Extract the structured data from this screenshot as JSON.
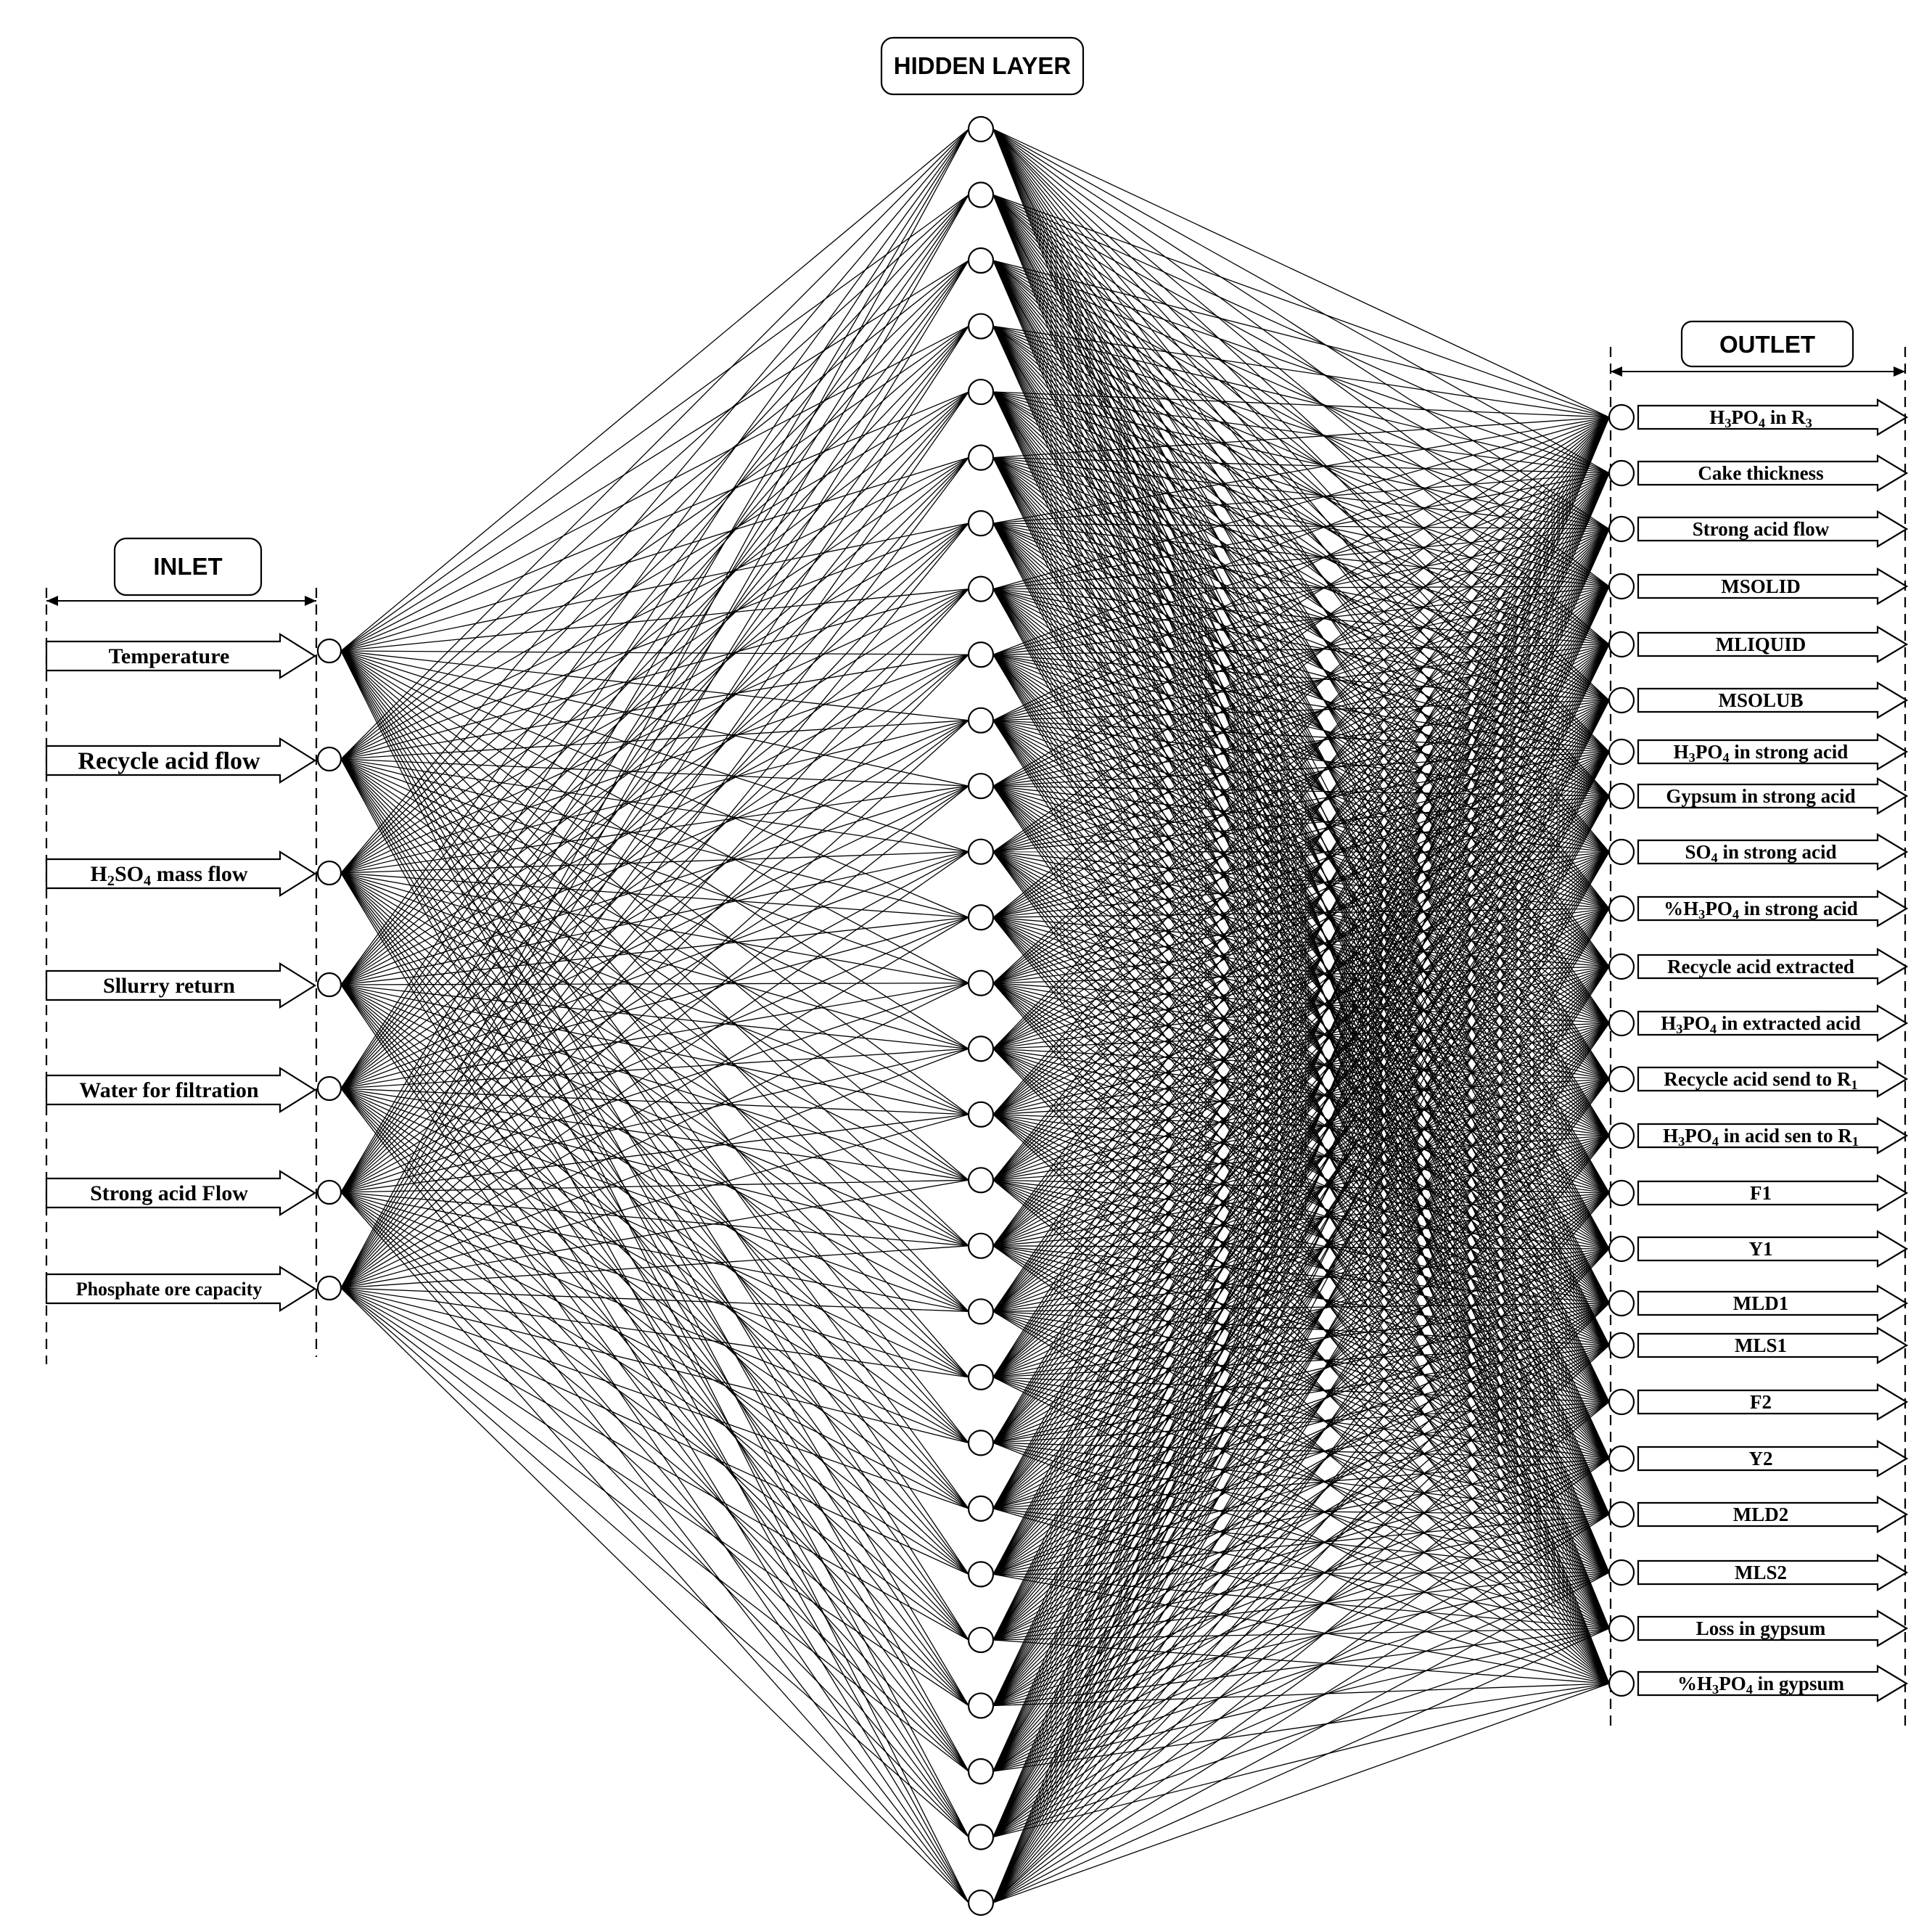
{
  "hidden_layer": {
    "label": "HIDDEN LAYER",
    "node_count": 28
  },
  "inlet": {
    "label": "INLET",
    "items": [
      {
        "text": "Temperature"
      },
      {
        "text": "Recycle acid flow"
      },
      {
        "text": "H",
        "parts": [
          {
            "t": "H"
          },
          {
            "t": "2",
            "sub": true
          },
          {
            "t": "SO"
          },
          {
            "t": "4",
            "sub": true
          },
          {
            "t": " mass flow"
          }
        ]
      },
      {
        "text": "Sllurry return"
      },
      {
        "text": "Water for filtration"
      },
      {
        "text": "Strong acid Flow"
      },
      {
        "text": "Phosphate ore capacity"
      }
    ]
  },
  "outlet": {
    "label": "OUTLET",
    "items": [
      {
        "parts": [
          {
            "t": "H"
          },
          {
            "t": "3",
            "sub": true
          },
          {
            "t": "PO"
          },
          {
            "t": "4",
            "sub": true
          },
          {
            "t": " in R"
          },
          {
            "t": "3",
            "sub": true
          }
        ]
      },
      {
        "parts": [
          {
            "t": "Cake thickness"
          }
        ]
      },
      {
        "parts": [
          {
            "t": "Strong acid flow"
          }
        ]
      },
      {
        "parts": [
          {
            "t": "MSOLID"
          }
        ]
      },
      {
        "parts": [
          {
            "t": "MLIQUID"
          }
        ]
      },
      {
        "parts": [
          {
            "t": "MSOLUB"
          }
        ]
      },
      {
        "parts": [
          {
            "t": "H"
          },
          {
            "t": "3",
            "sub": true
          },
          {
            "t": "PO"
          },
          {
            "t": "4",
            "sub": true
          },
          {
            "t": " in strong acid"
          }
        ]
      },
      {
        "parts": [
          {
            "t": "Gypsum in strong acid"
          }
        ]
      },
      {
        "parts": [
          {
            "t": "SO"
          },
          {
            "t": "4",
            "sub": true
          },
          {
            "t": " in strong acid"
          }
        ]
      },
      {
        "parts": [
          {
            "t": "%H"
          },
          {
            "t": "3",
            "sub": true
          },
          {
            "t": "PO"
          },
          {
            "t": "4",
            "sub": true
          },
          {
            "t": " in strong acid"
          }
        ]
      },
      {
        "parts": [
          {
            "t": "Recycle acid extracted"
          }
        ]
      },
      {
        "parts": [
          {
            "t": "H"
          },
          {
            "t": "3",
            "sub": true
          },
          {
            "t": "PO"
          },
          {
            "t": "4",
            "sub": true
          },
          {
            "t": " in extracted acid"
          }
        ]
      },
      {
        "parts": [
          {
            "t": "Recycle acid send to R"
          },
          {
            "t": "1",
            "sub": true
          }
        ]
      },
      {
        "parts": [
          {
            "t": "H"
          },
          {
            "t": "3",
            "sub": true
          },
          {
            "t": "PO"
          },
          {
            "t": "4",
            "sub": true
          },
          {
            "t": " in acid sen to R"
          },
          {
            "t": "1",
            "sub": true
          }
        ]
      },
      {
        "parts": [
          {
            "t": "F1"
          }
        ]
      },
      {
        "parts": [
          {
            "t": "Y1"
          }
        ]
      },
      {
        "parts": [
          {
            "t": "MLD1"
          }
        ]
      },
      {
        "parts": [
          {
            "t": "MLS1"
          }
        ]
      },
      {
        "parts": [
          {
            "t": "F2"
          }
        ]
      },
      {
        "parts": [
          {
            "t": "Y2"
          }
        ]
      },
      {
        "parts": [
          {
            "t": "MLD2"
          }
        ]
      },
      {
        "parts": [
          {
            "t": "MLS2"
          }
        ]
      },
      {
        "parts": [
          {
            "t": "Loss in gypsum"
          }
        ]
      },
      {
        "parts": [
          {
            "t": "%H"
          },
          {
            "t": "3",
            "sub": true
          },
          {
            "t": "PO"
          },
          {
            "t": "4",
            "sub": true
          },
          {
            "t": " in gypsum"
          }
        ]
      }
    ]
  }
}
